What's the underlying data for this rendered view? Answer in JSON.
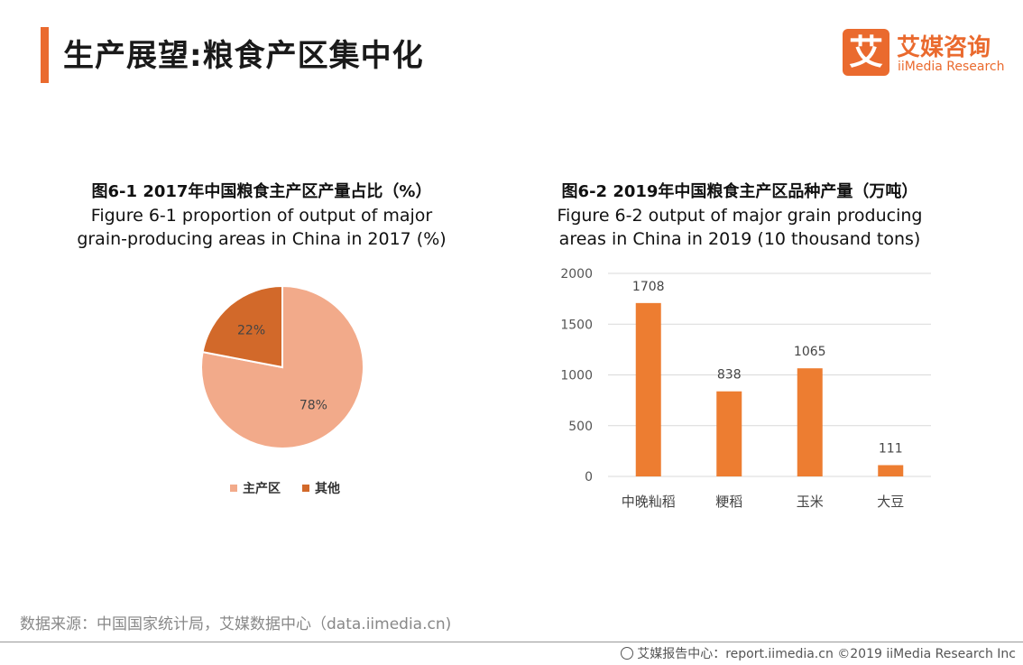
{
  "header": {
    "title": "生产展望:粮食产区集中化",
    "logo_mark": "艾",
    "logo_cn": "艾媒咨询",
    "logo_en": "iiMedia Research"
  },
  "colors": {
    "accent": "#ea6a2e",
    "bar": "#ed7d31",
    "pie_main": "#f2aa8a",
    "pie_other": "#d2692a",
    "grid": "#d9d9d9"
  },
  "chart_data": [
    {
      "type": "pie",
      "title_cn": "图6-1 2017年中国粮食主产区产量占比（%）",
      "title_en_1": "Figure 6-1 proportion of output of major",
      "title_en_2": "grain-producing  areas in China in 2017 (%)",
      "slices": [
        {
          "label": "主产区",
          "value": 78,
          "display": "78%"
        },
        {
          "label": "其他",
          "value": 22,
          "display": "22%"
        }
      ],
      "legend_position": "bottom"
    },
    {
      "type": "bar",
      "title_cn": "图6-2 2019年中国粮食主产区品种产量（万吨）",
      "title_en_1": "Figure 6-2 output of major grain producing",
      "title_en_2": "areas in China in 2019 (10 thousand tons)",
      "categories": [
        "中晚籼稻",
        "粳稻",
        "玉米",
        "大豆"
      ],
      "values": [
        1708,
        838,
        1065,
        111
      ],
      "ylim": [
        0,
        2000
      ],
      "yticks": [
        "0",
        "500",
        "1000",
        "1500",
        "2000"
      ],
      "grid": true
    }
  ],
  "source": "数据来源：中国国家统计局，艾媒数据中心（data.iimedia.cn)",
  "footer": "艾媒报告中心：report.iimedia.cn  ©2019  iiMedia Research  Inc"
}
